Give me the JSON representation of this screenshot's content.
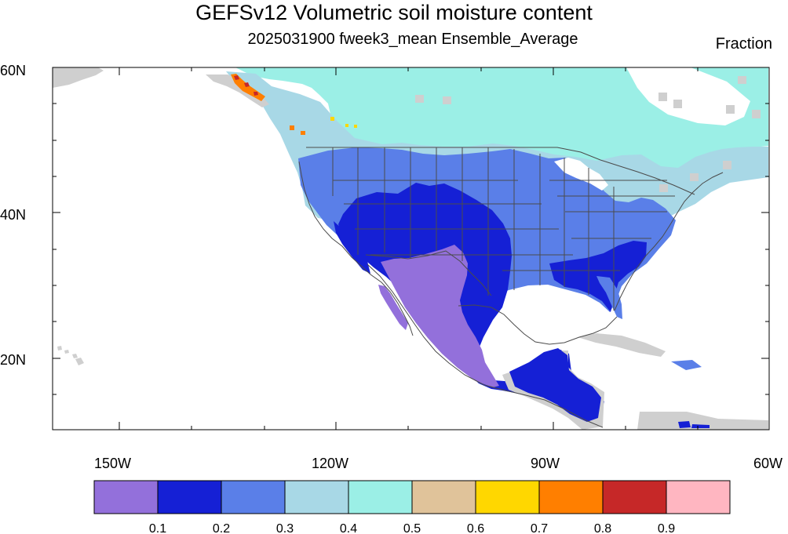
{
  "title": "GEFSv12 Volumetric soil moisture content",
  "subtitle": "2025031900 fweek3_mean Ensemble_Average",
  "units": "Fraction",
  "map": {
    "lat_labels": [
      "60N",
      "40N",
      "20N"
    ],
    "lon_labels": [
      "150W",
      "120W",
      "90W",
      "60W"
    ]
  },
  "legend": {
    "colors": [
      "#9370DB",
      "#1520D5",
      "#5A7FE8",
      "#A8D8E6",
      "#9BEFE6",
      "#E0C39A",
      "#FFD700",
      "#FF7F00",
      "#C62828",
      "#FFB6C1"
    ],
    "labels": [
      "0.1",
      "0.2",
      "0.3",
      "0.4",
      "0.5",
      "0.6",
      "0.7",
      "0.8",
      "0.9"
    ]
  }
}
